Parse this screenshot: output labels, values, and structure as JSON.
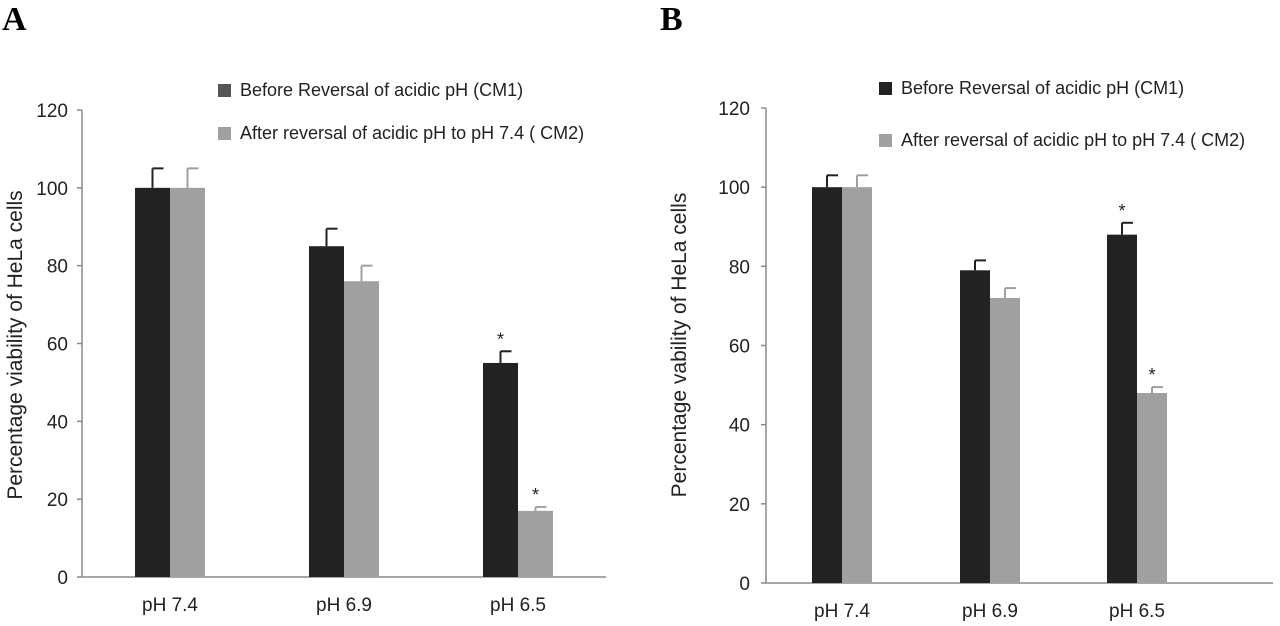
{
  "chart_data": [
    {
      "panel_label": "A",
      "type": "bar",
      "ylabel": "Percentage viability of HeLa cells",
      "ylim": [
        0,
        120
      ],
      "yticks": [
        "0",
        "20",
        "40",
        "60",
        "80",
        "100",
        "120"
      ],
      "categories": [
        "pH 7.4",
        "pH 6.9",
        "pH 6.5"
      ],
      "series": [
        {
          "name": "Before Reversal of acidic pH (CM1)",
          "color": "#222222",
          "values": [
            100,
            85,
            55
          ],
          "errors": [
            5,
            4.5,
            3
          ],
          "significance": [
            "",
            "",
            "*"
          ]
        },
        {
          "name": "After reversal of acidic pH to pH 7.4 ( CM2)",
          "color": "#a0a0a0",
          "values": [
            100,
            76,
            17
          ],
          "errors": [
            5,
            4,
            1
          ],
          "significance": [
            "",
            "",
            "*"
          ]
        }
      ],
      "legend_position": "top"
    },
    {
      "panel_label": "B",
      "type": "bar",
      "ylabel": "Percentage vability of HeLa cells",
      "ylim": [
        0,
        120
      ],
      "yticks": [
        "0",
        "20",
        "40",
        "60",
        "80",
        "100",
        "120"
      ],
      "categories": [
        "pH 7.4",
        "pH 6.9",
        "pH 6.5"
      ],
      "series": [
        {
          "name": "Before Reversal of acidic pH (CM1)",
          "color": "#222222",
          "values": [
            100,
            79,
            88
          ],
          "errors": [
            3,
            2.5,
            3
          ],
          "significance": [
            "",
            "",
            "*"
          ]
        },
        {
          "name": "After reversal of acidic pH to pH 7.4 ( CM2)",
          "color": "#a0a0a0",
          "values": [
            100,
            72,
            48
          ],
          "errors": [
            3,
            2.5,
            1.5
          ],
          "significance": [
            "",
            "",
            "*"
          ]
        }
      ],
      "legend_position": "top"
    }
  ]
}
